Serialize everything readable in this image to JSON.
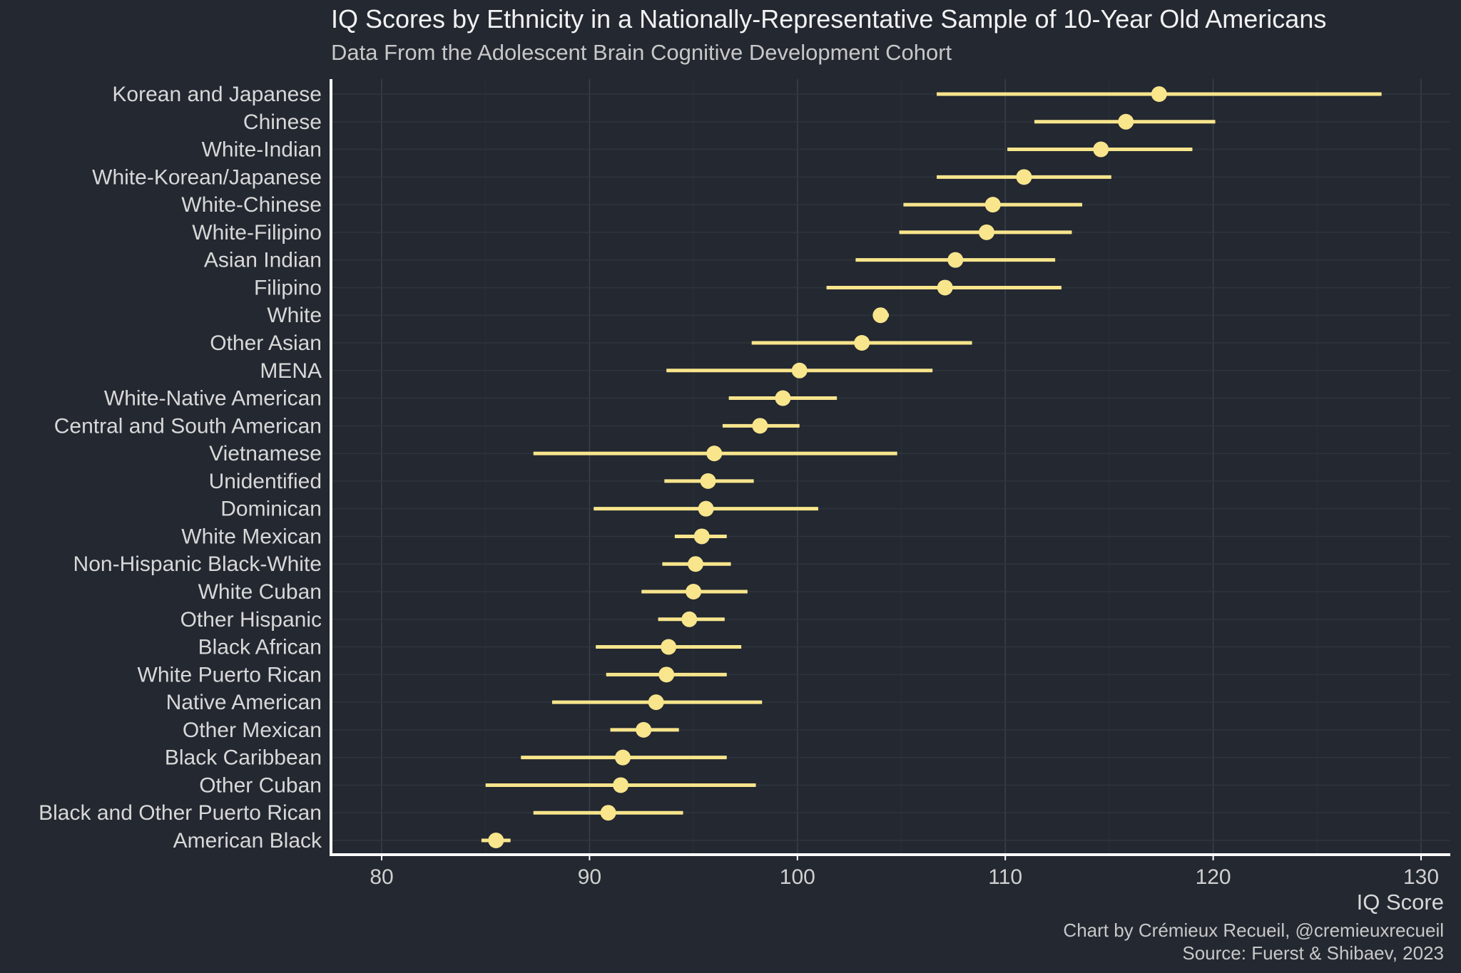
{
  "chart_data": {
    "type": "scatter",
    "subtype": "dot-with-interval",
    "title": "IQ Scores by Ethnicity in a Nationally-Representative Sample of 10-Year Old Americans",
    "subtitle": "Data From the Adolescent Brain Cognitive Development Cohort",
    "xlabel": "IQ Score",
    "ylabel": "",
    "xlim": [
      77.5,
      131.5
    ],
    "xticks": [
      80,
      90,
      100,
      110,
      120,
      130
    ],
    "grid": true,
    "caption": [
      "Chart by Crémieux Recueil, @cremieuxrecueil",
      "Source: Fuerst & Shibaev, 2023"
    ],
    "colors": {
      "background": "#232831",
      "point": "#f8e58c",
      "grid": "#3a404a",
      "axis": "#ffffff"
    },
    "categories": [
      "Korean and Japanese",
      "Chinese",
      "White-Indian",
      "White-Korean/Japanese",
      "White-Chinese",
      "White-Filipino",
      "Asian Indian",
      "Filipino",
      "White",
      "Other Asian",
      "MENA",
      "White-Native American",
      "Central and South American",
      "Vietnamese",
      "Unidentified",
      "Dominican",
      "White Mexican",
      "Non-Hispanic Black-White",
      "White Cuban",
      "Other Hispanic",
      "Black African",
      "White Puerto Rican",
      "Native American",
      "Other Mexican",
      "Black Caribbean",
      "Other Cuban",
      "Black and Other Puerto Rican",
      "American Black"
    ],
    "values": [
      117.4,
      115.8,
      114.6,
      110.9,
      109.4,
      109.1,
      107.6,
      107.1,
      104.0,
      103.1,
      100.1,
      99.3,
      98.2,
      96.0,
      95.7,
      95.6,
      95.4,
      95.1,
      95.0,
      94.8,
      93.8,
      93.7,
      93.2,
      92.6,
      91.6,
      91.5,
      90.9,
      85.5
    ],
    "lower": [
      106.7,
      111.4,
      110.1,
      106.7,
      105.1,
      104.9,
      102.8,
      101.4,
      103.7,
      97.8,
      93.7,
      96.7,
      96.4,
      87.3,
      93.6,
      90.2,
      94.1,
      93.5,
      92.5,
      93.3,
      90.3,
      90.8,
      88.2,
      91.0,
      86.7,
      85.0,
      87.3,
      84.8
    ],
    "upper": [
      128.1,
      120.1,
      119.0,
      115.1,
      113.7,
      113.2,
      112.4,
      112.7,
      104.4,
      108.4,
      106.5,
      101.9,
      100.1,
      104.8,
      97.9,
      101.0,
      96.6,
      96.8,
      97.6,
      96.5,
      97.3,
      96.6,
      98.3,
      94.3,
      96.6,
      98.0,
      94.5,
      86.2
    ]
  }
}
